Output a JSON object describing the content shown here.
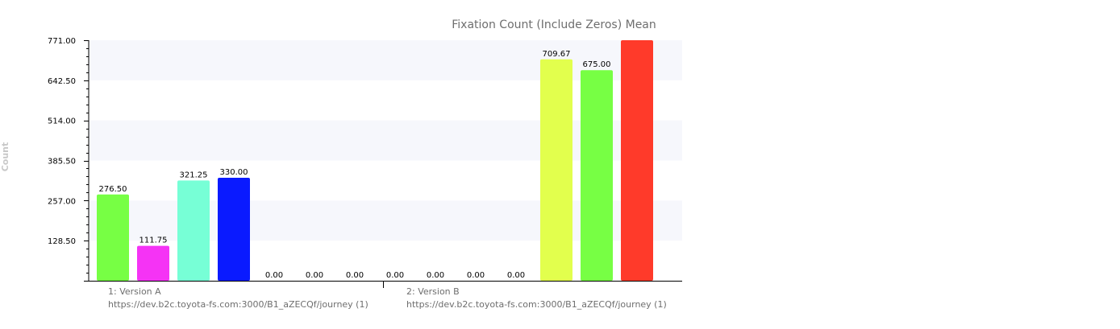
{
  "chart_data": {
    "type": "bar",
    "title": "Fixation Count (Include Zeros) Mean",
    "xlabel": "",
    "ylabel": "Count",
    "ylim": [
      0,
      771
    ],
    "yticks": [
      "128.50",
      "257.00",
      "385.50",
      "514.00",
      "642.50",
      "771.00"
    ],
    "grid": "alternating horizontal bands",
    "groups": [
      {
        "label_line1": "1: Version A",
        "label_line2": "https://dev.b2c.toyota-fs.com:3000/B1_aZECQf/journey (1)",
        "bars": [
          {
            "value": 276.5,
            "label": "276.50",
            "color": "#77ff44"
          },
          {
            "value": 111.75,
            "label": "111.75",
            "color": "#f533f5"
          },
          {
            "value": 321.25,
            "label": "321.25",
            "color": "#77ffd6"
          },
          {
            "value": 330.0,
            "label": "330.00",
            "color": "#0a1aff"
          },
          {
            "value": 0,
            "label": "0.00",
            "color": "#cccccc"
          },
          {
            "value": 0,
            "label": "0.00",
            "color": "#cccccc"
          },
          {
            "value": 0,
            "label": "0.00",
            "color": "#cccccc"
          }
        ]
      },
      {
        "label_line1": "2: Version B",
        "label_line2": "https://dev.b2c.toyota-fs.com:3000/B1_aZECQf/journey (1)",
        "bars": [
          {
            "value": 0,
            "label": "0.00",
            "color": "#cccccc"
          },
          {
            "value": 0,
            "label": "0.00",
            "color": "#cccccc"
          },
          {
            "value": 0,
            "label": "0.00",
            "color": "#cccccc"
          },
          {
            "value": 0,
            "label": "0.00",
            "color": "#cccccc"
          },
          {
            "value": 709.67,
            "label": "709.67",
            "color": "#e2ff4d"
          },
          {
            "value": 675.0,
            "label": "675.00",
            "color": "#77ff44"
          },
          {
            "value": 771.0,
            "label": "",
            "color": "#ff3a2a"
          }
        ]
      }
    ]
  }
}
